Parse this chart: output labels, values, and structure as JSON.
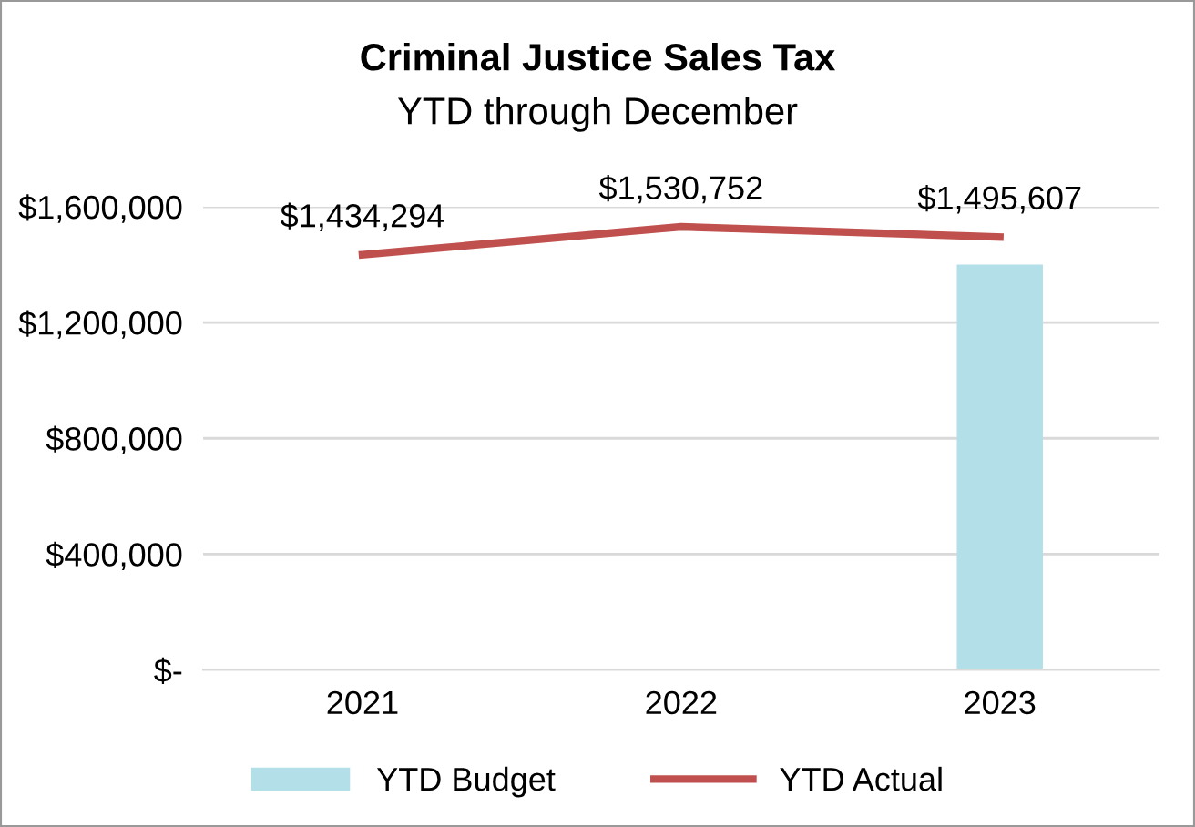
{
  "chart_data": {
    "type": "bar",
    "title": "Criminal Justice Sales Tax",
    "subtitle": "YTD through December",
    "categories": [
      "2021",
      "2022",
      "2023"
    ],
    "series": [
      {
        "name": "YTD Budget",
        "color": "#b3dfe8",
        "values": [
          null,
          null,
          1400000
        ]
      },
      {
        "name": "YTD Actual",
        "type": "line",
        "color": "#c0504d",
        "values": [
          1434294,
          1530752,
          1495607
        ],
        "value_labels": [
          "$1,434,294",
          "$1,530,752",
          "$1,495,607"
        ]
      }
    ],
    "ylim": [
      0,
      1600000
    ],
    "yticks": [
      {
        "value": 0,
        "label": "$-"
      },
      {
        "value": 400000,
        "label": "$400,000"
      },
      {
        "value": 800000,
        "label": "$800,000"
      },
      {
        "value": 1200000,
        "label": "$1,200,000"
      },
      {
        "value": 1600000,
        "label": "$1,600,000"
      }
    ],
    "grid": "y",
    "legend": "bottom",
    "marker": "none"
  }
}
